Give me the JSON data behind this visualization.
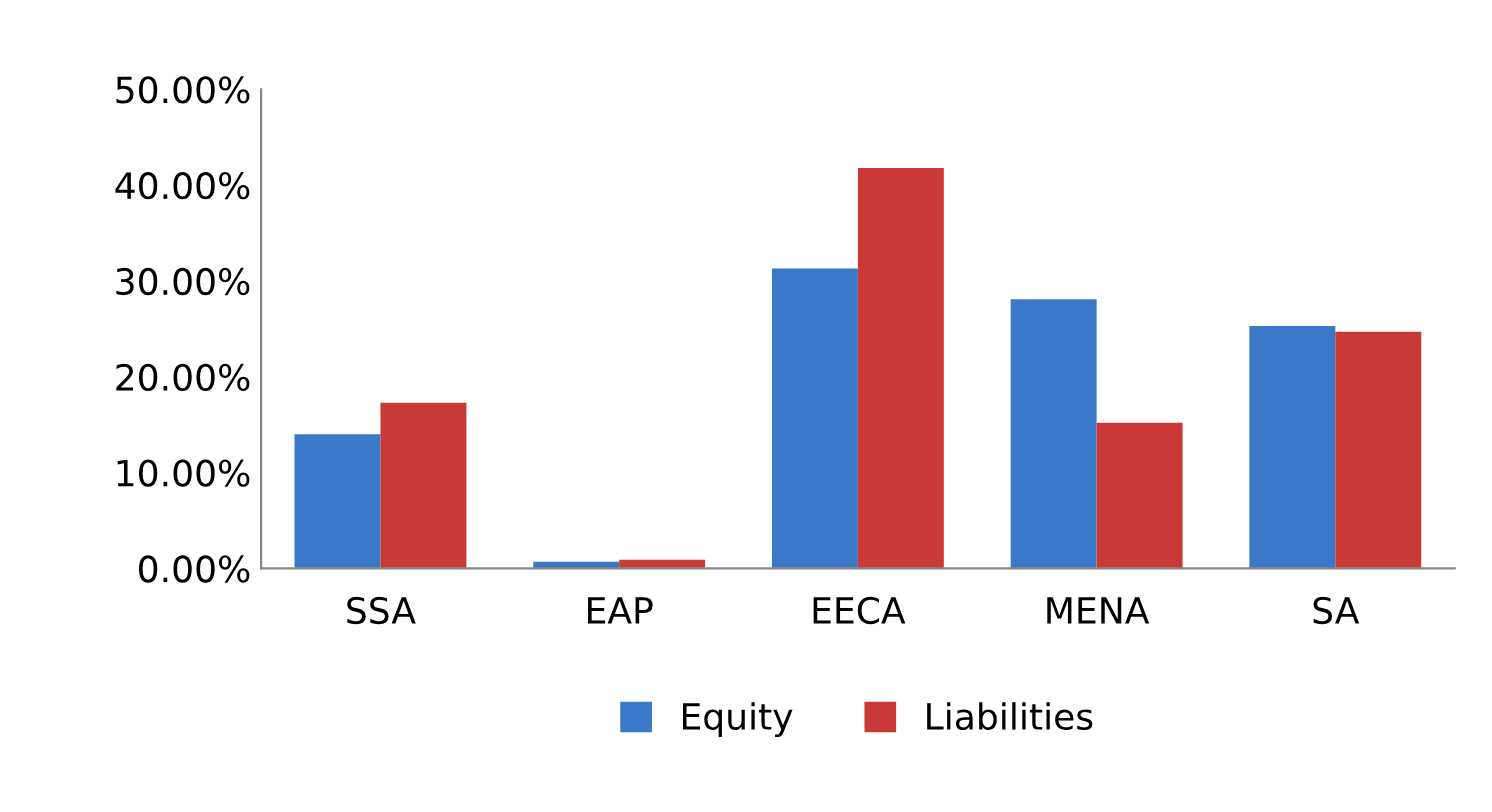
{
  "chart_data": {
    "type": "bar",
    "categories": [
      "SSA",
      "EAP",
      "EECA",
      "MENA",
      "SA"
    ],
    "series": [
      {
        "name": "Equity",
        "color": "#3a78c8",
        "values": [
          14.0,
          0.7,
          31.3,
          28.1,
          25.3
        ]
      },
      {
        "name": "Liabilities",
        "color": "#c93a36",
        "values": [
          17.3,
          0.9,
          41.8,
          15.2,
          24.7
        ]
      }
    ],
    "ylim": [
      0,
      50
    ],
    "yticks": [
      {
        "value": 0,
        "label": "0.00%"
      },
      {
        "value": 10,
        "label": "10.00%"
      },
      {
        "value": 20,
        "label": "20.00%"
      },
      {
        "value": 30,
        "label": "30.00%"
      },
      {
        "value": 40,
        "label": "40.00%"
      },
      {
        "value": 50,
        "label": "50.00%"
      }
    ],
    "grid": false,
    "legend": "bottom"
  }
}
